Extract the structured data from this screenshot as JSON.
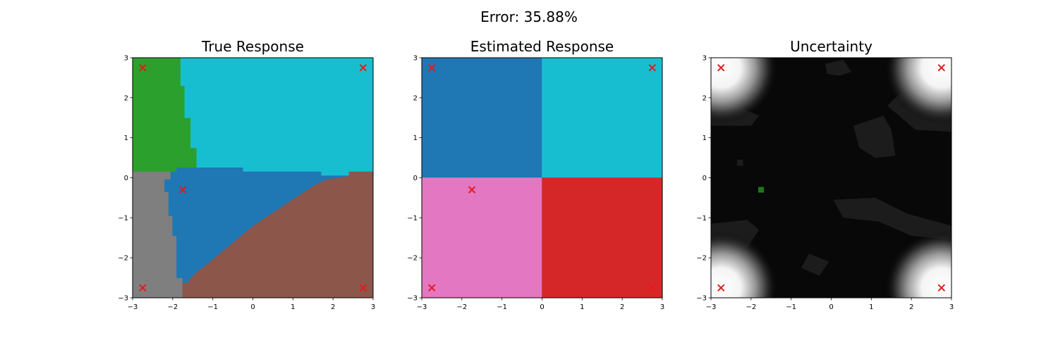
{
  "figure": {
    "suptitle": "Error: 35.88%"
  },
  "chart_data": [
    {
      "type": "heatmap",
      "title": "True Response",
      "xlim": [
        -3,
        3
      ],
      "ylim": [
        -3,
        3
      ],
      "xticks": [
        "−3",
        "−2",
        "−1",
        "0",
        "1",
        "2",
        "3"
      ],
      "yticks": [
        "−3",
        "−2",
        "−1",
        "0",
        "1",
        "2",
        "3"
      ],
      "colors": {
        "green": "#2ca02c",
        "cyan": "#17becf",
        "blue": "#1f77b4",
        "gray": "#7f7f7f",
        "brown": "#8c564b"
      },
      "regions": [
        {
          "color": "green",
          "points": [
            [
              -3,
              3
            ],
            [
              -1.8,
              3
            ],
            [
              -1.8,
              2.3
            ],
            [
              -1.7,
              2.3
            ],
            [
              -1.7,
              1.5
            ],
            [
              -1.55,
              1.5
            ],
            [
              -1.55,
              0.75
            ],
            [
              -1.4,
              0.75
            ],
            [
              -1.4,
              0.15
            ],
            [
              -3,
              0.15
            ]
          ]
        },
        {
          "color": "cyan",
          "points": [
            [
              -1.8,
              3
            ],
            [
              3,
              3
            ],
            [
              3,
              0.15
            ],
            [
              2.4,
              0.15
            ],
            [
              2.4,
              0.05
            ],
            [
              1.7,
              0.05
            ],
            [
              1.7,
              0.15
            ],
            [
              -0.25,
              0.15
            ],
            [
              -0.25,
              0.25
            ],
            [
              -1.9,
              0.25
            ],
            [
              -1.9,
              0.15
            ],
            [
              -1.4,
              0.15
            ],
            [
              -1.4,
              0.75
            ],
            [
              -1.55,
              0.75
            ],
            [
              -1.55,
              1.5
            ],
            [
              -1.7,
              1.5
            ],
            [
              -1.7,
              2.3
            ],
            [
              -1.8,
              2.3
            ]
          ]
        },
        {
          "color": "gray",
          "points": [
            [
              -3,
              0.15
            ],
            [
              -2.05,
              0.15
            ],
            [
              -2.05,
              -0.05
            ],
            [
              -2.2,
              -0.05
            ],
            [
              -2.2,
              -0.35
            ],
            [
              -2.1,
              -0.35
            ],
            [
              -2.1,
              -0.95
            ],
            [
              -2.0,
              -0.95
            ],
            [
              -2.0,
              -1.45
            ],
            [
              -1.9,
              -1.45
            ],
            [
              -1.9,
              -2.5
            ],
            [
              -1.75,
              -2.5
            ],
            [
              -1.75,
              -3
            ],
            [
              -3,
              -3
            ]
          ]
        },
        {
          "color": "brown",
          "points": [
            [
              2.4,
              0.15
            ],
            [
              3,
              0.15
            ],
            [
              3,
              -3
            ],
            [
              -1.75,
              -3
            ],
            [
              -1.75,
              -2.62
            ],
            [
              -1.6,
              -2.62
            ],
            [
              -1.6,
              -2.55
            ],
            [
              -1.4,
              -2.35
            ],
            [
              -1.2,
              -2.2
            ],
            [
              -0.9,
              -1.95
            ],
            [
              -0.6,
              -1.7
            ],
            [
              -0.3,
              -1.45
            ],
            [
              0.0,
              -1.2
            ],
            [
              0.3,
              -1.0
            ],
            [
              0.6,
              -0.8
            ],
            [
              0.9,
              -0.6
            ],
            [
              1.2,
              -0.4
            ],
            [
              1.5,
              -0.2
            ],
            [
              1.8,
              -0.05
            ],
            [
              2.1,
              0.0
            ],
            [
              2.4,
              0.05
            ]
          ]
        },
        {
          "color": "blue",
          "points": [
            [
              -1.9,
              0.25
            ],
            [
              -0.25,
              0.25
            ],
            [
              -0.25,
              0.15
            ],
            [
              1.7,
              0.15
            ],
            [
              1.7,
              0.05
            ],
            [
              2.4,
              0.05
            ],
            [
              2.1,
              0.0
            ],
            [
              1.8,
              -0.05
            ],
            [
              1.5,
              -0.2
            ],
            [
              1.2,
              -0.4
            ],
            [
              0.9,
              -0.6
            ],
            [
              0.6,
              -0.8
            ],
            [
              0.3,
              -1.0
            ],
            [
              0.0,
              -1.2
            ],
            [
              -0.3,
              -1.45
            ],
            [
              -0.6,
              -1.7
            ],
            [
              -0.9,
              -1.95
            ],
            [
              -1.2,
              -2.2
            ],
            [
              -1.4,
              -2.35
            ],
            [
              -1.6,
              -2.55
            ],
            [
              -1.6,
              -2.62
            ],
            [
              -1.75,
              -2.62
            ],
            [
              -1.75,
              -2.5
            ],
            [
              -1.9,
              -2.5
            ],
            [
              -1.9,
              -1.45
            ],
            [
              -2.0,
              -1.45
            ],
            [
              -2.0,
              -0.95
            ],
            [
              -2.1,
              -0.95
            ],
            [
              -2.1,
              -0.35
            ],
            [
              -2.2,
              -0.35
            ],
            [
              -2.2,
              -0.05
            ],
            [
              -2.05,
              -0.05
            ],
            [
              -2.05,
              0.15
            ],
            [
              -1.9,
              0.15
            ]
          ]
        }
      ],
      "markers": [
        {
          "x": -2.75,
          "y": 2.75,
          "shape": "x",
          "color": "#e31a1c"
        },
        {
          "x": 2.75,
          "y": 2.75,
          "shape": "x",
          "color": "#e31a1c"
        },
        {
          "x": -1.75,
          "y": -0.3,
          "shape": "x",
          "color": "#e31a1c"
        },
        {
          "x": -2.75,
          "y": -2.75,
          "shape": "x",
          "color": "#e31a1c"
        },
        {
          "x": 2.75,
          "y": -2.75,
          "shape": "x",
          "color": "#e31a1c"
        }
      ]
    },
    {
      "type": "heatmap",
      "title": "Estimated Response",
      "xlim": [
        -3,
        3
      ],
      "ylim": [
        -3,
        3
      ],
      "xticks": [
        "−3",
        "−2",
        "−1",
        "0",
        "1",
        "2",
        "3"
      ],
      "yticks": [
        "−3",
        "−2",
        "−1",
        "0",
        "1",
        "2",
        "3"
      ],
      "colors": {
        "blue": "#1f77b4",
        "cyan": "#17becf",
        "pink": "#e377c2",
        "red": "#d62728"
      },
      "regions": [
        {
          "color": "blue",
          "points": [
            [
              -3,
              3
            ],
            [
              0,
              3
            ],
            [
              0,
              0
            ],
            [
              -3,
              0
            ]
          ]
        },
        {
          "color": "cyan",
          "points": [
            [
              0,
              3
            ],
            [
              3,
              3
            ],
            [
              3,
              0
            ],
            [
              0,
              0
            ]
          ]
        },
        {
          "color": "pink",
          "points": [
            [
              -3,
              0
            ],
            [
              0,
              0
            ],
            [
              0,
              -3
            ],
            [
              -3,
              -3
            ]
          ]
        },
        {
          "color": "red",
          "points": [
            [
              0,
              0
            ],
            [
              3,
              0
            ],
            [
              3,
              -3
            ],
            [
              0,
              -3
            ]
          ]
        }
      ],
      "markers": [
        {
          "x": -2.75,
          "y": 2.75,
          "shape": "x",
          "color": "#e31a1c"
        },
        {
          "x": 2.75,
          "y": 2.75,
          "shape": "x",
          "color": "#e31a1c"
        },
        {
          "x": -1.75,
          "y": -0.3,
          "shape": "x",
          "color": "#e31a1c"
        },
        {
          "x": -2.75,
          "y": -2.75,
          "shape": "x",
          "color": "#e31a1c"
        },
        {
          "x": 2.75,
          "y": -2.75,
          "shape": "x",
          "color": "#e31a1c"
        }
      ]
    },
    {
      "type": "heatmap",
      "title": "Uncertainty",
      "xlim": [
        -3,
        3
      ],
      "ylim": [
        -3,
        3
      ],
      "xticks": [
        "−3",
        "−2",
        "−1",
        "0",
        "1",
        "2",
        "3"
      ],
      "yticks": [
        "−3",
        "−2",
        "−1",
        "0",
        "1",
        "2",
        "3"
      ],
      "colormap": "gray",
      "background_color": "#080808",
      "hotspots": [
        {
          "x": -2.75,
          "y": 2.75,
          "peak": 1.0
        },
        {
          "x": 2.75,
          "y": 2.75,
          "peak": 1.0
        },
        {
          "x": -2.75,
          "y": -2.75,
          "peak": 1.0
        },
        {
          "x": 2.75,
          "y": -2.75,
          "peak": 1.0
        }
      ],
      "faint_patches": [
        {
          "color": "#1c1c1c",
          "points": [
            [
              -3,
              1.3
            ],
            [
              -2.0,
              1.3
            ],
            [
              -1.8,
              1.55
            ],
            [
              -2.4,
              1.8
            ],
            [
              -3,
              1.8
            ]
          ]
        },
        {
          "color": "#1c1c1c",
          "points": [
            [
              1.4,
              1.8
            ],
            [
              2.1,
              1.2
            ],
            [
              3,
              1.15
            ],
            [
              3,
              1.9
            ],
            [
              1.8,
              2.2
            ]
          ]
        },
        {
          "color": "#1c1c1c",
          "points": [
            [
              0.55,
              1.3
            ],
            [
              1.3,
              1.55
            ],
            [
              1.5,
              1.2
            ],
            [
              1.6,
              0.55
            ],
            [
              1.1,
              0.5
            ],
            [
              0.7,
              0.75
            ]
          ]
        },
        {
          "color": "#1c1c1c",
          "points": [
            [
              -0.15,
              2.85
            ],
            [
              0.3,
              2.95
            ],
            [
              0.5,
              2.65
            ],
            [
              0.2,
              2.55
            ],
            [
              -0.1,
              2.6
            ]
          ]
        },
        {
          "color": "#1c1c1c",
          "points": [
            [
              0.05,
              -0.55
            ],
            [
              1.1,
              -0.5
            ],
            [
              1.9,
              -0.9
            ],
            [
              3,
              -1.2
            ],
            [
              3,
              -1.55
            ],
            [
              2.0,
              -1.45
            ],
            [
              1.2,
              -1.1
            ],
            [
              0.3,
              -1.0
            ]
          ]
        },
        {
          "color": "#1c1c1c",
          "points": [
            [
              -3,
              -1.15
            ],
            [
              -2.1,
              -1.05
            ],
            [
              -1.8,
              -1.3
            ],
            [
              -2.1,
              -1.75
            ],
            [
              -3,
              -1.8
            ]
          ]
        },
        {
          "color": "#1c1c1c",
          "points": [
            [
              -0.55,
              -1.9
            ],
            [
              -0.05,
              -2.1
            ],
            [
              -0.3,
              -2.45
            ],
            [
              -0.75,
              -2.25
            ]
          ]
        },
        {
          "color": "#1c1c1c",
          "points": [
            [
              -2.35,
              0.45
            ],
            [
              -2.2,
              0.45
            ],
            [
              -2.2,
              0.3
            ],
            [
              -2.35,
              0.3
            ]
          ]
        }
      ],
      "markers": [
        {
          "x": -2.75,
          "y": 2.75,
          "shape": "x",
          "color": "#e31a1c"
        },
        {
          "x": 2.75,
          "y": 2.75,
          "shape": "x",
          "color": "#e31a1c"
        },
        {
          "x": -2.75,
          "y": -2.75,
          "shape": "x",
          "color": "#e31a1c"
        },
        {
          "x": 2.75,
          "y": -2.75,
          "shape": "x",
          "color": "#e31a1c"
        },
        {
          "x": -1.75,
          "y": -0.3,
          "shape": "square",
          "color": "#1a7a1a"
        }
      ]
    }
  ]
}
